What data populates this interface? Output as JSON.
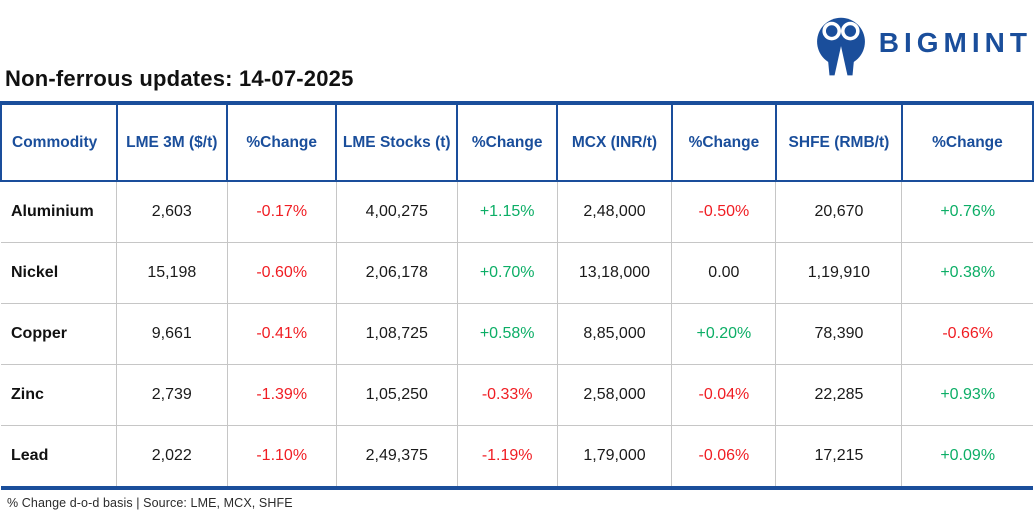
{
  "brand": {
    "name": "BIGMINT",
    "logo_color": "#1a4e9b"
  },
  "header": {
    "title": "Non-ferrous updates: 14-07-2025"
  },
  "chart_data": {
    "type": "table",
    "title": "Non-ferrous updates: 14-07-2025",
    "columns": [
      "Commodity",
      "LME 3M ($/t)",
      "%Change",
      "LME Stocks (t)",
      "%Change",
      "MCX (INR/t)",
      "%Change",
      "SHFE (RMB/t)",
      "%Change"
    ],
    "rows": [
      [
        "Aluminium",
        "2,603",
        "-0.17%",
        "4,00,275",
        "+1.15%",
        "2,48,000",
        "-0.50%",
        "20,670",
        "+0.76%"
      ],
      [
        "Nickel",
        "15,198",
        "-0.60%",
        "2,06,178",
        "+0.70%",
        "13,18,000",
        "0.00",
        "1,19,910",
        "+0.38%"
      ],
      [
        "Copper",
        "9,661",
        "-0.41%",
        "1,08,725",
        "+0.58%",
        "8,85,000",
        "+0.20%",
        "78,390",
        "-0.66%"
      ],
      [
        "Zinc",
        "2,739",
        "-1.39%",
        "1,05,250",
        "-0.33%",
        "2,58,000",
        "-0.04%",
        "22,285",
        "+0.93%"
      ],
      [
        "Lead",
        "2,022",
        "-1.10%",
        "2,49,375",
        "-1.19%",
        "1,79,000",
        "-0.06%",
        "17,215",
        "+0.09%"
      ]
    ],
    "value_format": "indian-digit-grouping",
    "change_color_rule": {
      "positive": "#0cae66",
      "negative": "#f01d23",
      "zero": "#1a1a1a"
    }
  },
  "footer": {
    "note": "% Change d-o-d basis | Source: LME, MCX, SHFE"
  },
  "colors": {
    "accent_blue": "#1a4e9b",
    "positive_green": "#0cae66",
    "negative_red": "#f01d23",
    "body_border_gray": "#c6c6c6"
  }
}
